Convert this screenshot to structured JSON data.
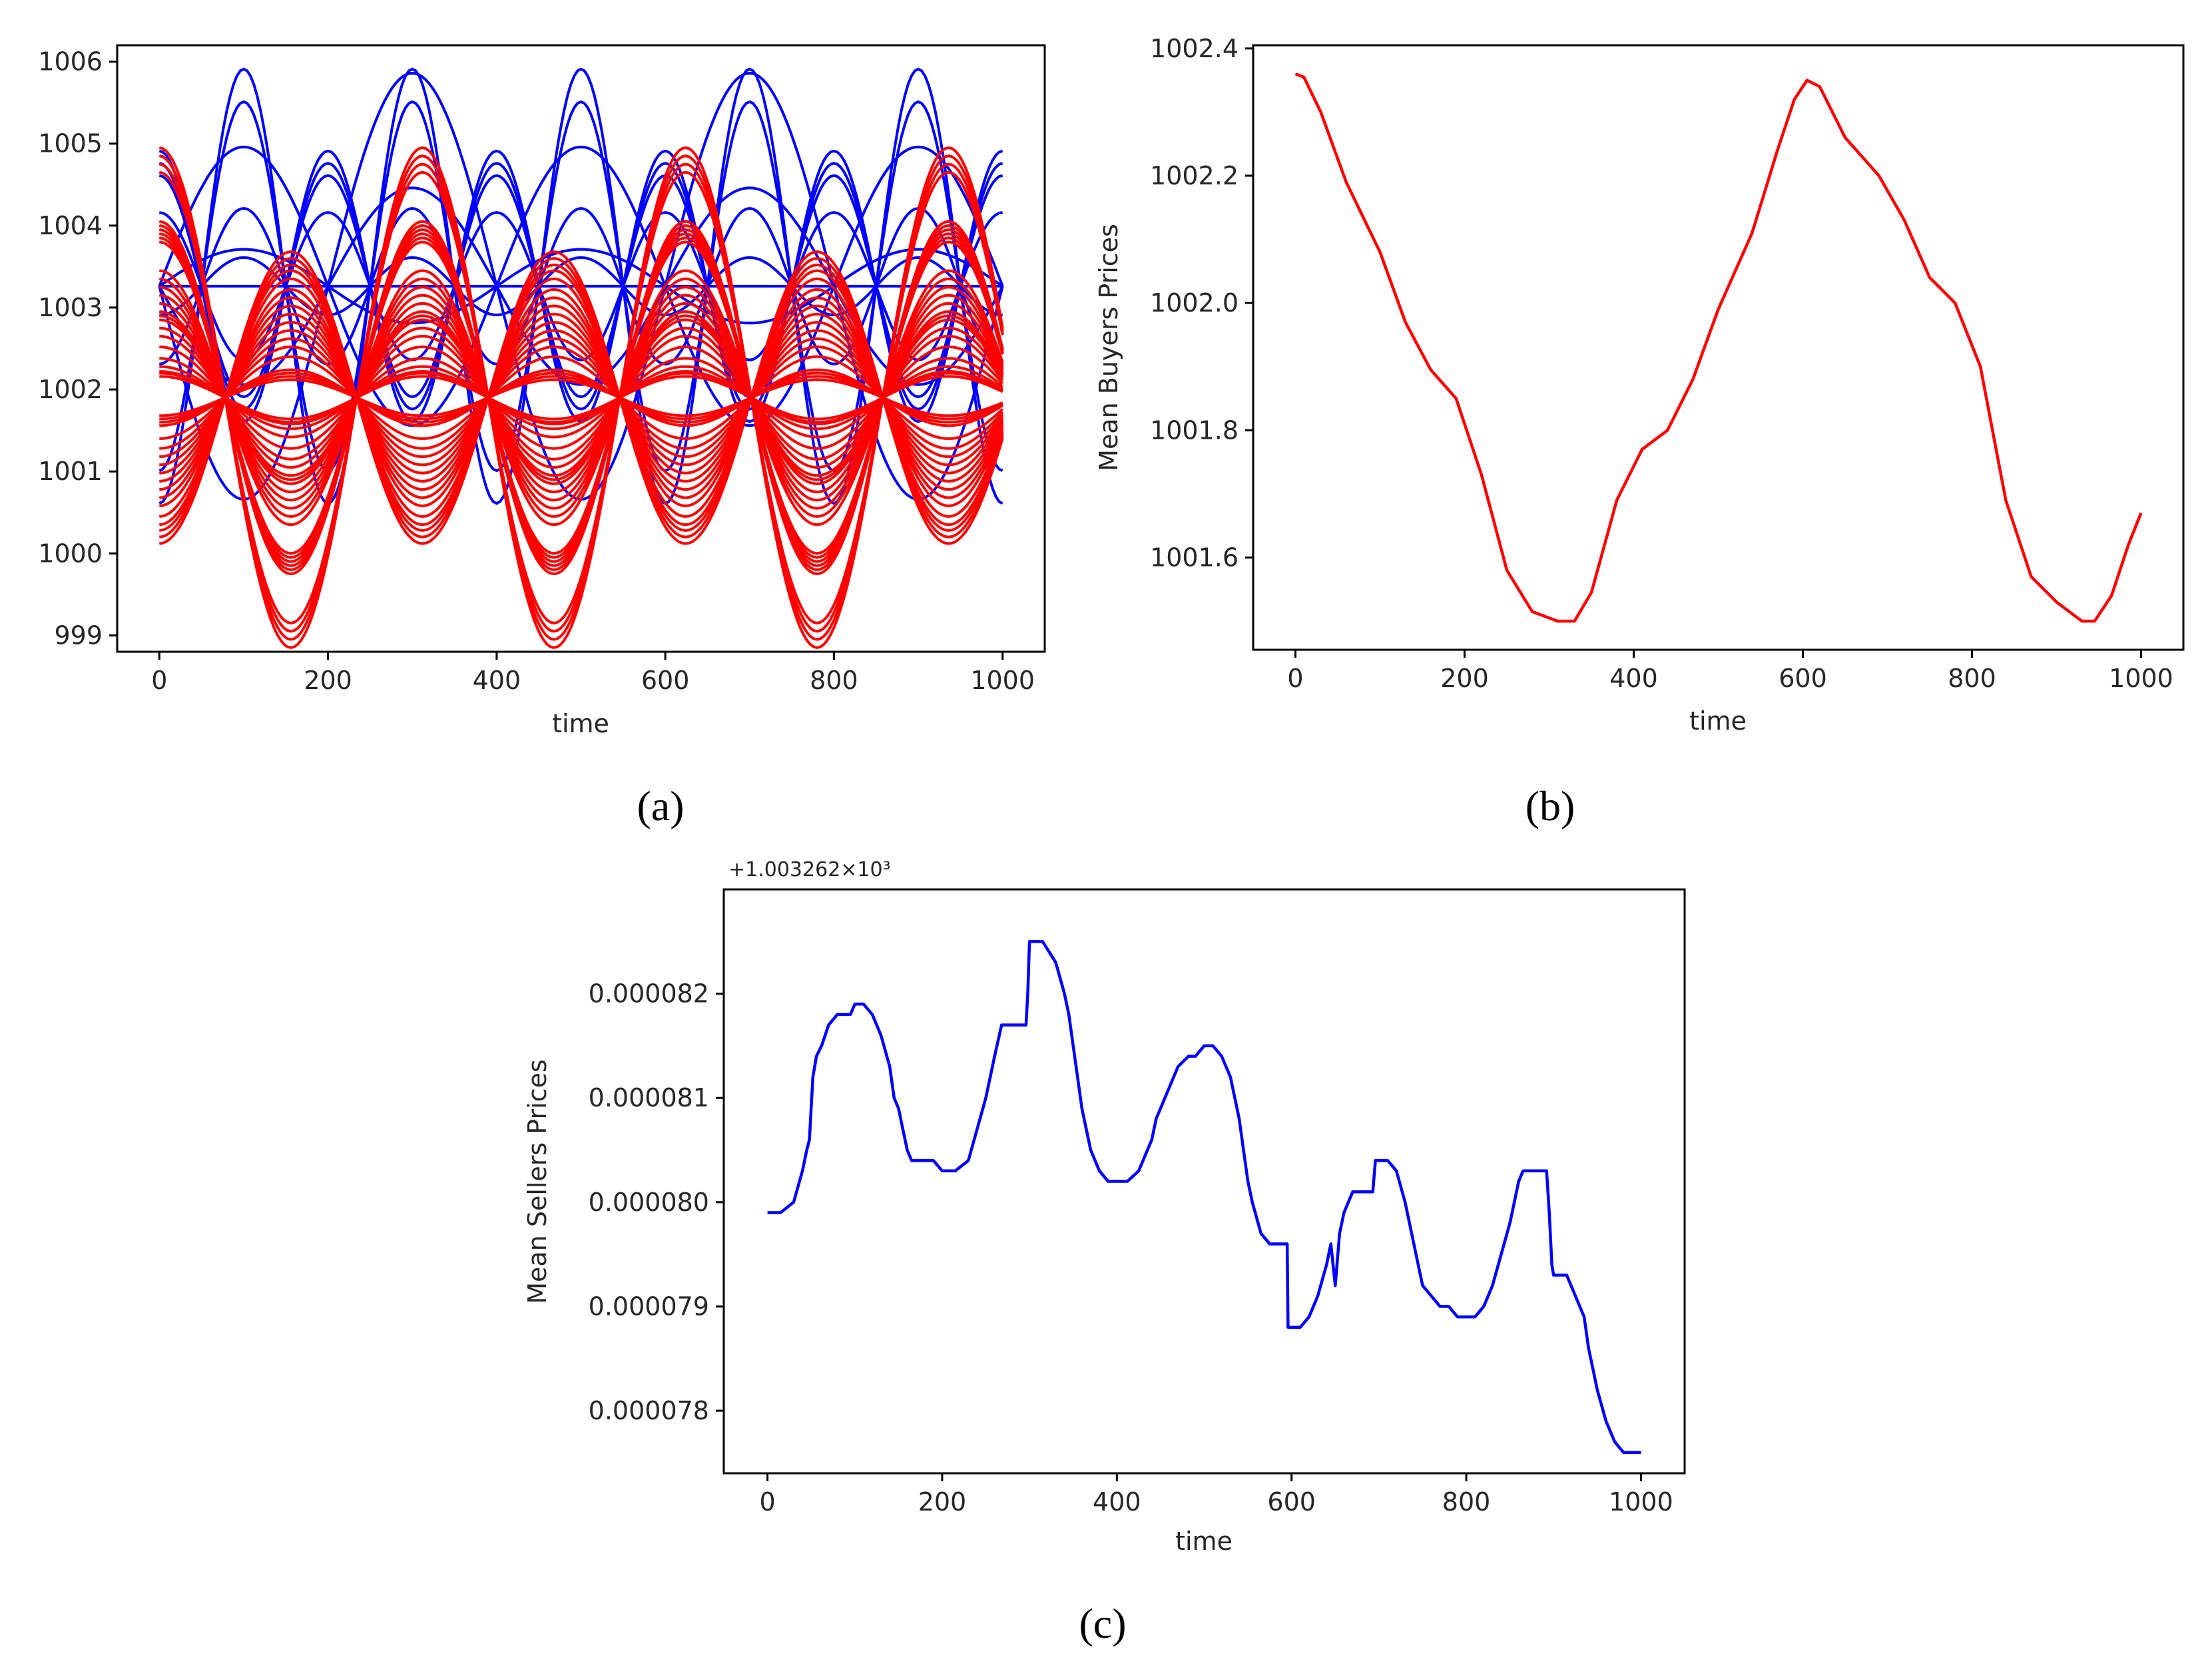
{
  "figure": {
    "colors": {
      "buyers": "#ff0000",
      "sellers": "#0000ff",
      "axis": "#000000"
    }
  },
  "chart_data": [
    {
      "id": "a",
      "type": "line",
      "caption": "(a)",
      "title": "",
      "xlabel": "time",
      "ylabel": "",
      "xlim": [
        -50,
        1050
      ],
      "ylim": [
        998.8,
        1006.2
      ],
      "xticks": [
        "0",
        "200",
        "400",
        "600",
        "800",
        "1000"
      ],
      "yticks": [
        "999",
        "1000",
        "1001",
        "1002",
        "1003",
        "1004",
        "1005",
        "1006"
      ],
      "series_groups": [
        {
          "name": "sellers",
          "color": "#0000ff",
          "model": "p(t) = 1003.26 + A*cos(2*pi*(t - t0)/P)",
          "curves": [
            {
              "amplitude": 2.65,
              "period": 200,
              "t0": 100
            },
            {
              "amplitude": 2.25,
              "period": 200,
              "t0": 100
            },
            {
              "amplitude": 1.65,
              "period": 200,
              "t0": 0
            },
            {
              "amplitude": 1.5,
              "period": 200,
              "t0": 0
            },
            {
              "amplitude": 1.35,
              "period": 200,
              "t0": 0
            },
            {
              "amplitude": 0.95,
              "period": 200,
              "t0": 100
            },
            {
              "amplitude": 0.9,
              "period": 200,
              "t0": 0
            },
            {
              "amplitude": 0.35,
              "period": 200,
              "t0": 100
            },
            {
              "amplitude": 0.0,
              "period": 200,
              "t0": 0
            },
            {
              "amplitude": 2.6,
              "period": 400,
              "t0": 300
            },
            {
              "amplitude": 1.7,
              "period": 400,
              "t0": 100
            },
            {
              "amplitude": 1.2,
              "period": 400,
              "t0": 300
            },
            {
              "amplitude": 0.45,
              "period": 400,
              "t0": 100
            }
          ]
        },
        {
          "name": "buyers",
          "color": "#ff0000",
          "model": "p(t) = 1001.9 + A*cos(2*pi*t/P)",
          "pivot_period": 312,
          "amplitudes": [
            3.05,
            2.95,
            2.85,
            2.75,
            2.15,
            2.1,
            2.05,
            2.0,
            1.95,
            1.9,
            1.55,
            1.45,
            1.35,
            1.25,
            1.15,
            1.05,
            1.0,
            0.95,
            0.85,
            0.75,
            0.62,
            0.48,
            0.38,
            0.32,
            0.3,
            0.26,
            -0.22,
            -0.26,
            -0.3,
            -0.34,
            -0.5,
            -0.62,
            -0.72,
            -0.82,
            -0.92,
            -1.02,
            -1.12,
            -1.22,
            -1.32,
            -1.45,
            -1.55,
            -1.62,
            -1.7,
            -1.78
          ]
        }
      ]
    },
    {
      "id": "b",
      "type": "line",
      "caption": "(b)",
      "title": "",
      "xlabel": "time",
      "ylabel": "Mean Buyers Prices",
      "xlim": [
        -50,
        1050
      ],
      "ylim": [
        1001.455,
        1002.405
      ],
      "xticks": [
        "0",
        "200",
        "400",
        "600",
        "800",
        "1000"
      ],
      "yticks": [
        "1001.6",
        "1001.8",
        "1002.0",
        "1002.2",
        "1002.4"
      ],
      "series": [
        {
          "name": "Mean Buyers Prices",
          "color": "#ff0000",
          "x": [
            0,
            10,
            30,
            60,
            100,
            130,
            160,
            190,
            220,
            250,
            280,
            310,
            330,
            350,
            380,
            410,
            440,
            470,
            500,
            540,
            570,
            590,
            605,
            620,
            650,
            690,
            720,
            750,
            780,
            810,
            840,
            870,
            900,
            930,
            945,
            965,
            985,
            1000
          ],
          "y": [
            1002.36,
            1002.355,
            1002.3,
            1002.19,
            1002.08,
            1001.97,
            1001.895,
            1001.85,
            1001.73,
            1001.58,
            1001.515,
            1001.5,
            1001.5,
            1001.545,
            1001.69,
            1001.77,
            1001.8,
            1001.88,
            1001.99,
            1002.11,
            1002.24,
            1002.32,
            1002.35,
            1002.34,
            1002.26,
            1002.2,
            1002.13,
            1002.04,
            1002.0,
            1001.9,
            1001.69,
            1001.57,
            1001.53,
            1001.5,
            1001.5,
            1001.54,
            1001.62,
            1001.67
          ]
        }
      ]
    },
    {
      "id": "c",
      "type": "line",
      "caption": "(c)",
      "title": "",
      "xlabel": "time",
      "ylabel": "Mean Sellers Prices",
      "offset_label": "+1.003262×10³",
      "xlim": [
        -50,
        1050
      ],
      "ylim": [
        7.74e-05,
        8.3e-05
      ],
      "xticks": [
        "0",
        "200",
        "400",
        "600",
        "800",
        "1000"
      ],
      "yticks": [
        "0.000078",
        "0.000079",
        "0.000080",
        "0.000081",
        "0.000082"
      ],
      "series": [
        {
          "name": "Mean Sellers Prices",
          "color": "#0000ff",
          "x": [
            0,
            15,
            30,
            40,
            45,
            48,
            50,
            52,
            56,
            62,
            70,
            80,
            95,
            100,
            110,
            120,
            130,
            140,
            145,
            150,
            155,
            160,
            165,
            175,
            190,
            200,
            205,
            215,
            230,
            240,
            250,
            255,
            260,
            268,
            275,
            290,
            296,
            298,
            300,
            315,
            330,
            340,
            345,
            350,
            355,
            360,
            370,
            380,
            390,
            400,
            412,
            425,
            440,
            445,
            450,
            460,
            470,
            482,
            490,
            500,
            510,
            520,
            530,
            540,
            545,
            550,
            555,
            565,
            575,
            590,
            595,
            596,
            600,
            610,
            620,
            630,
            640,
            645,
            650,
            655,
            660,
            670,
            680,
            690,
            693,
            696,
            700,
            710,
            720,
            730,
            740,
            745,
            750,
            760,
            770,
            780,
            790,
            795,
            800,
            810,
            820,
            830,
            840,
            850,
            860,
            865,
            870,
            875,
            885,
            892,
            895,
            898,
            900,
            915,
            925,
            935,
            940,
            945,
            950,
            960,
            970,
            980,
            990,
            1000
          ],
          "y": [
            7.99e-05,
            7.99e-05,
            8e-05,
            8.03e-05,
            8.05e-05,
            8.06e-05,
            8.09e-05,
            8.12e-05,
            8.14e-05,
            8.15e-05,
            8.17e-05,
            8.18e-05,
            8.18e-05,
            8.19e-05,
            8.19e-05,
            8.18e-05,
            8.16e-05,
            8.13e-05,
            8.1e-05,
            8.09e-05,
            8.07e-05,
            8.05e-05,
            8.04e-05,
            8.04e-05,
            8.04e-05,
            8.03e-05,
            8.03e-05,
            8.03e-05,
            8.04e-05,
            8.07e-05,
            8.1e-05,
            8.12e-05,
            8.14e-05,
            8.17e-05,
            8.17e-05,
            8.17e-05,
            8.17e-05,
            8.2e-05,
            8.25e-05,
            8.25e-05,
            8.23e-05,
            8.2e-05,
            8.18e-05,
            8.15e-05,
            8.12e-05,
            8.09e-05,
            8.05e-05,
            8.03e-05,
            8.02e-05,
            8.02e-05,
            8.02e-05,
            8.03e-05,
            8.06e-05,
            8.08e-05,
            8.09e-05,
            8.11e-05,
            8.13e-05,
            8.14e-05,
            8.14e-05,
            8.15e-05,
            8.15e-05,
            8.14e-05,
            8.12e-05,
            8.08e-05,
            8.05e-05,
            8.02e-05,
            8e-05,
            7.97e-05,
            7.96e-05,
            7.96e-05,
            7.96e-05,
            7.88e-05,
            7.88e-05,
            7.88e-05,
            7.89e-05,
            7.91e-05,
            7.94e-05,
            7.96e-05,
            7.92e-05,
            7.97e-05,
            7.99e-05,
            8.01e-05,
            8.01e-05,
            8.01e-05,
            8.01e-05,
            8.04e-05,
            8.04e-05,
            8.04e-05,
            8.03e-05,
            8e-05,
            7.96e-05,
            7.94e-05,
            7.92e-05,
            7.91e-05,
            7.9e-05,
            7.9e-05,
            7.89e-05,
            7.89e-05,
            7.89e-05,
            7.89e-05,
            7.9e-05,
            7.92e-05,
            7.95e-05,
            7.98e-05,
            8.02e-05,
            8.03e-05,
            8.03e-05,
            8.03e-05,
            8.03e-05,
            8.03e-05,
            7.99e-05,
            7.94e-05,
            7.93e-05,
            7.93e-05,
            7.91e-05,
            7.89e-05,
            7.86e-05,
            7.84e-05,
            7.82e-05,
            7.79e-05,
            7.77e-05,
            7.76e-05,
            7.76e-05,
            7.76e-05
          ]
        }
      ]
    }
  ]
}
